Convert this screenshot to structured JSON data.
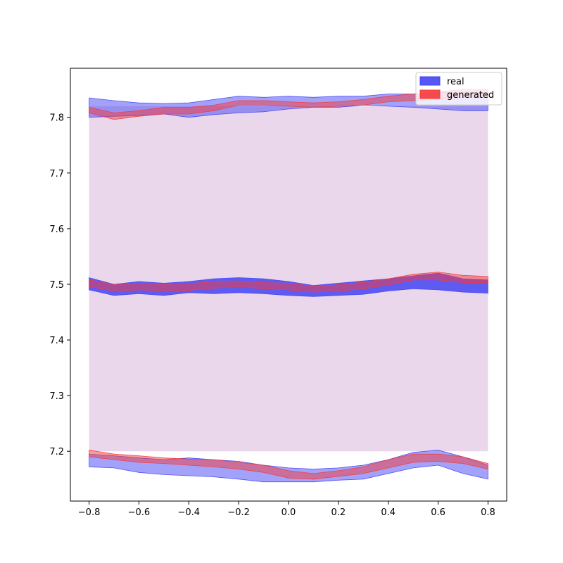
{
  "chart_data": {
    "type": "area",
    "title": "",
    "xlabel": "",
    "ylabel": "",
    "xlim": [
      -0.875,
      0.875
    ],
    "ylim": [
      7.1105,
      7.8882
    ],
    "grid": false,
    "legend_position": "top-right",
    "x_ticks": [
      -0.8,
      -0.6,
      -0.4,
      -0.2,
      0.0,
      0.2,
      0.4,
      0.6,
      0.8
    ],
    "x_tick_labels": [
      "−0.8",
      "−0.6",
      "−0.4",
      "−0.2",
      "0.0",
      "0.2",
      "0.4",
      "0.6",
      "0.8"
    ],
    "y_ticks": [
      7.2,
      7.3,
      7.4,
      7.5,
      7.6,
      7.7,
      7.8
    ],
    "y_tick_labels": [
      "7.2",
      "7.3",
      "7.4",
      "7.5",
      "7.6",
      "7.7",
      "7.8"
    ],
    "x": [
      -0.8,
      -0.7,
      -0.6,
      -0.5,
      -0.4,
      -0.3,
      -0.2,
      -0.1,
      0.0,
      0.1,
      0.2,
      0.3,
      0.4,
      0.5,
      0.6,
      0.7,
      0.8
    ],
    "envelope": {
      "lower": 7.2,
      "upper": 7.82,
      "color": "#e8d3e9"
    },
    "series": [
      {
        "name": "real",
        "color": "#4545f5",
        "bands": [
          {
            "lower": [
              7.8,
              7.802,
              7.803,
              7.806,
              7.8,
              7.805,
              7.808,
              7.81,
              7.815,
              7.818,
              7.818,
              7.822,
              7.82,
              7.818,
              7.815,
              7.812,
              7.812
            ],
            "upper": [
              7.835,
              7.83,
              7.826,
              7.825,
              7.826,
              7.832,
              7.838,
              7.836,
              7.838,
              7.836,
              7.838,
              7.838,
              7.842,
              7.842,
              7.845,
              7.845,
              7.845
            ]
          },
          {
            "lower": [
              7.49,
              7.48,
              7.483,
              7.48,
              7.485,
              7.483,
              7.485,
              7.483,
              7.48,
              7.478,
              7.48,
              7.482,
              7.488,
              7.492,
              7.49,
              7.486,
              7.484
            ],
            "upper": [
              7.512,
              7.5,
              7.505,
              7.502,
              7.505,
              7.51,
              7.512,
              7.51,
              7.505,
              7.498,
              7.502,
              7.506,
              7.51,
              7.515,
              7.52,
              7.51,
              7.508
            ]
          },
          {
            "lower": [
              7.172,
              7.17,
              7.162,
              7.158,
              7.156,
              7.154,
              7.15,
              7.145,
              7.145,
              7.145,
              7.148,
              7.15,
              7.16,
              7.17,
              7.175,
              7.16,
              7.15
            ],
            "upper": [
              7.195,
              7.192,
              7.188,
              7.185,
              7.188,
              7.185,
              7.182,
              7.175,
              7.17,
              7.168,
              7.17,
              7.175,
              7.185,
              7.198,
              7.202,
              7.19,
              7.175
            ]
          }
        ]
      },
      {
        "name": "generated",
        "color": "#f53a3a",
        "bands": [
          {
            "lower": [
              7.808,
              7.796,
              7.802,
              7.806,
              7.806,
              7.812,
              7.822,
              7.822,
              7.82,
              7.818,
              7.82,
              7.822,
              7.828,
              7.83,
              7.832,
              7.836,
              7.836
            ],
            "upper": [
              7.818,
              7.808,
              7.812,
              7.818,
              7.818,
              7.822,
              7.83,
              7.83,
              7.828,
              7.826,
              7.828,
              7.832,
              7.838,
              7.842,
              7.846,
              7.85,
              7.85
            ]
          },
          {
            "lower": [
              7.496,
              7.488,
              7.49,
              7.489,
              7.489,
              7.493,
              7.496,
              7.492,
              7.49,
              7.486,
              7.488,
              7.492,
              7.499,
              7.508,
              7.508,
              7.503,
              7.503
            ],
            "upper": [
              7.508,
              7.5,
              7.502,
              7.5,
              7.501,
              7.505,
              7.506,
              7.503,
              7.502,
              7.496,
              7.499,
              7.504,
              7.51,
              7.518,
              7.522,
              7.516,
              7.514
            ]
          },
          {
            "lower": [
              7.19,
              7.185,
              7.18,
              7.178,
              7.175,
              7.172,
              7.168,
              7.162,
              7.152,
              7.15,
              7.155,
              7.16,
              7.17,
              7.18,
              7.182,
              7.178,
              7.168
            ],
            "upper": [
              7.202,
              7.195,
              7.192,
              7.188,
              7.186,
              7.185,
              7.18,
              7.175,
              7.165,
              7.16,
              7.165,
              7.172,
              7.185,
              7.195,
              7.195,
              7.19,
              7.178
            ]
          }
        ]
      }
    ]
  }
}
